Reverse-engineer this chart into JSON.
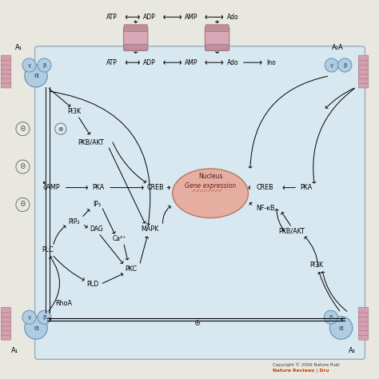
{
  "cell_bg": "#d8e8f0",
  "outer_bg": "#e8e8e0",
  "nucleus_fill": "#e8a898",
  "nucleus_edge": "#b07060",
  "receptor_color": "#d4a0b0",
  "receptor_dark": "#b88090",
  "circle_fill": "#b0cce0",
  "circle_edge": "#6090b8",
  "top_pathway": [
    "ATP",
    "ADP",
    "AMP",
    "Ado"
  ],
  "inner_pathway": [
    "ATP",
    "ADP",
    "AMP",
    "Ado",
    "Ino"
  ],
  "left_label_top": "A₁",
  "right_label_top": "A₂A",
  "left_label_bot": "A₁",
  "right_label_bot": "A₂",
  "greek_alpha": "α",
  "greek_beta": "β",
  "greek_gamma": "γ",
  "nucleus_text": "Gene expression",
  "nucleus_label": "Nucleus",
  "copyright": "Copyright © 2006 Nature Publ",
  "journal": "Nature Reviews | Dru"
}
